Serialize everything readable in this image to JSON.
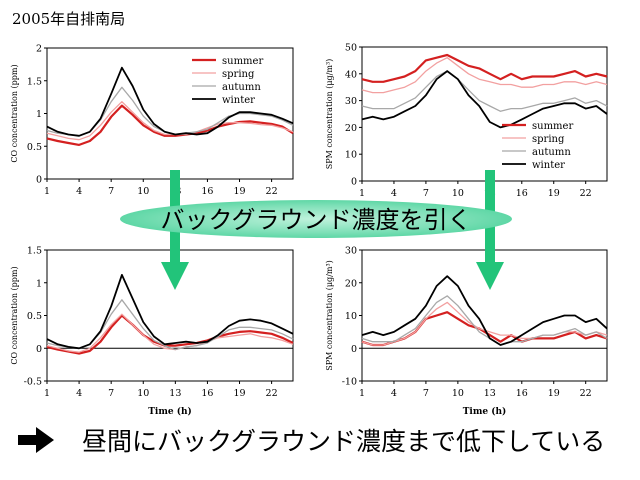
{
  "title": "2005年自排南局",
  "banner_text": "バックグラウンド濃度を引く",
  "bottom_message": "昼間にバックグラウンド濃度まで低下している",
  "colors": {
    "summer": "#d42020",
    "spring": "#f2a0a0",
    "autumn": "#a8a8a8",
    "winter": "#000000",
    "arrow": "#22c47a",
    "banner": "#7fe0b8"
  },
  "chart_data": [
    {
      "id": "co-raw",
      "type": "line",
      "ylabel": "CO concentration (ppm)",
      "xlabel": "",
      "ylim": [
        0,
        2
      ],
      "yticks": [
        0,
        0.5,
        1,
        1.5,
        2
      ],
      "ytick_labels": [
        "0",
        "0.5",
        "1",
        "1.5",
        "2"
      ],
      "xticks": [
        1,
        4,
        7,
        10,
        13,
        16,
        19,
        22
      ],
      "xtick_labels": [
        "1",
        "4",
        "7",
        "10",
        "13",
        "16",
        "19",
        "22"
      ],
      "xlim": [
        1,
        24
      ],
      "legend": "top-right",
      "x": [
        1,
        2,
        3,
        4,
        5,
        6,
        7,
        8,
        9,
        10,
        11,
        12,
        13,
        14,
        15,
        16,
        17,
        18,
        19,
        20,
        21,
        22,
        23,
        24
      ],
      "series": [
        {
          "name": "summer",
          "values": [
            0.62,
            0.58,
            0.55,
            0.52,
            0.58,
            0.72,
            0.95,
            1.12,
            0.98,
            0.82,
            0.72,
            0.66,
            0.66,
            0.68,
            0.7,
            0.74,
            0.8,
            0.84,
            0.87,
            0.88,
            0.86,
            0.84,
            0.8,
            0.7
          ]
        },
        {
          "name": "spring",
          "values": [
            0.7,
            0.66,
            0.62,
            0.6,
            0.66,
            0.82,
            1.02,
            1.18,
            1.02,
            0.86,
            0.74,
            0.68,
            0.68,
            0.68,
            0.72,
            0.78,
            0.84,
            0.86,
            0.86,
            0.85,
            0.83,
            0.82,
            0.78,
            0.72
          ]
        },
        {
          "name": "autumn",
          "values": [
            0.74,
            0.7,
            0.68,
            0.66,
            0.72,
            0.9,
            1.18,
            1.4,
            1.2,
            0.96,
            0.8,
            0.72,
            0.68,
            0.7,
            0.72,
            0.76,
            0.86,
            0.96,
            1.0,
            1.0,
            0.98,
            0.96,
            0.9,
            0.82
          ]
        },
        {
          "name": "winter",
          "values": [
            0.8,
            0.72,
            0.68,
            0.66,
            0.72,
            0.92,
            1.3,
            1.7,
            1.42,
            1.06,
            0.84,
            0.72,
            0.68,
            0.7,
            0.68,
            0.7,
            0.8,
            0.94,
            1.02,
            1.02,
            1.0,
            0.98,
            0.92,
            0.85
          ]
        }
      ]
    },
    {
      "id": "spm-raw",
      "type": "line",
      "ylabel": "SPM concentration (μg/m³)",
      "xlabel": "",
      "ylim": [
        0,
        50
      ],
      "yticks": [
        0,
        10,
        20,
        30,
        40,
        50
      ],
      "ytick_labels": [
        "0",
        "10",
        "20",
        "30",
        "40",
        "50"
      ],
      "xticks": [
        1,
        4,
        7,
        10,
        13,
        16,
        19,
        22
      ],
      "xtick_labels": [
        "1",
        "4",
        "7",
        "10",
        "13",
        "16",
        "19",
        "22"
      ],
      "xlim": [
        1,
        24
      ],
      "legend": "bottom-right",
      "x": [
        1,
        2,
        3,
        4,
        5,
        6,
        7,
        8,
        9,
        10,
        11,
        12,
        13,
        14,
        15,
        16,
        17,
        18,
        19,
        20,
        21,
        22,
        23,
        24
      ],
      "series": [
        {
          "name": "summer",
          "values": [
            38,
            37,
            37,
            38,
            39,
            41,
            45,
            46,
            47,
            45,
            43,
            42,
            40,
            38,
            40,
            38,
            39,
            39,
            39,
            40,
            41,
            39,
            40,
            39
          ]
        },
        {
          "name": "spring",
          "values": [
            34,
            33,
            33,
            34,
            35,
            37,
            41,
            44,
            46,
            43,
            40,
            38,
            37,
            36,
            36,
            35,
            35,
            36,
            36,
            37,
            37,
            36,
            37,
            36
          ]
        },
        {
          "name": "autumn",
          "values": [
            28,
            27,
            27,
            27,
            29,
            31,
            35,
            39,
            41,
            38,
            34,
            30,
            28,
            26,
            27,
            27,
            28,
            29,
            29,
            30,
            31,
            29,
            30,
            28
          ]
        },
        {
          "name": "winter",
          "values": [
            23,
            24,
            23,
            24,
            26,
            28,
            32,
            38,
            41,
            38,
            32,
            28,
            22,
            20,
            21,
            23,
            25,
            27,
            28,
            29,
            29,
            27,
            28,
            25
          ]
        }
      ]
    },
    {
      "id": "co-diff",
      "type": "line",
      "ylabel": "CO concentration (ppm)",
      "xlabel": "Time (h)",
      "ylim": [
        -0.5,
        1.5
      ],
      "yticks": [
        -0.5,
        0,
        0.5,
        1,
        1.5
      ],
      "ytick_labels": [
        "-0.5",
        "0",
        "0.5",
        "1",
        "1.5"
      ],
      "xticks": [
        1,
        4,
        7,
        10,
        13,
        16,
        19,
        22
      ],
      "xtick_labels": [
        "1",
        "4",
        "7",
        "10",
        "13",
        "16",
        "19",
        "22"
      ],
      "xlim": [
        1,
        24
      ],
      "legend": "none",
      "x": [
        1,
        2,
        3,
        4,
        5,
        6,
        7,
        8,
        9,
        10,
        11,
        12,
        13,
        14,
        15,
        16,
        17,
        18,
        19,
        20,
        21,
        22,
        23,
        24
      ],
      "series": [
        {
          "name": "summer",
          "values": [
            0.02,
            -0.02,
            -0.05,
            -0.08,
            -0.04,
            0.1,
            0.32,
            0.5,
            0.36,
            0.2,
            0.1,
            0.04,
            0.04,
            0.06,
            0.08,
            0.12,
            0.18,
            0.22,
            0.25,
            0.26,
            0.24,
            0.22,
            0.16,
            0.08
          ]
        },
        {
          "name": "spring",
          "values": [
            0.04,
            0.0,
            -0.04,
            -0.06,
            0.0,
            0.16,
            0.36,
            0.52,
            0.36,
            0.2,
            0.06,
            0.0,
            -0.02,
            0.02,
            0.04,
            0.1,
            0.16,
            0.18,
            0.2,
            0.22,
            0.18,
            0.16,
            0.12,
            0.06
          ]
        },
        {
          "name": "autumn",
          "values": [
            0.08,
            0.04,
            0.02,
            0.0,
            0.06,
            0.24,
            0.52,
            0.74,
            0.52,
            0.3,
            0.12,
            0.04,
            -0.02,
            0.02,
            0.04,
            0.08,
            0.18,
            0.28,
            0.32,
            0.32,
            0.3,
            0.28,
            0.22,
            0.14
          ]
        },
        {
          "name": "winter",
          "values": [
            0.14,
            0.06,
            0.02,
            0.0,
            0.06,
            0.26,
            0.64,
            1.12,
            0.76,
            0.4,
            0.18,
            0.06,
            0.08,
            0.1,
            0.08,
            0.1,
            0.2,
            0.34,
            0.42,
            0.44,
            0.42,
            0.38,
            0.3,
            0.22
          ]
        }
      ]
    },
    {
      "id": "spm-diff",
      "type": "line",
      "ylabel": "SPM concentration (μg/m³)",
      "xlabel": "Time (h)",
      "ylim": [
        -10,
        30
      ],
      "yticks": [
        -10,
        0,
        10,
        20,
        30
      ],
      "ytick_labels": [
        "-10",
        "0",
        "10",
        "20",
        "30"
      ],
      "xticks": [
        1,
        4,
        7,
        10,
        13,
        16,
        19,
        22
      ],
      "xtick_labels": [
        "1",
        "4",
        "7",
        "10",
        "13",
        "16",
        "19",
        "22"
      ],
      "xlim": [
        1,
        24
      ],
      "legend": "none",
      "x": [
        1,
        2,
        3,
        4,
        5,
        6,
        7,
        8,
        9,
        10,
        11,
        12,
        13,
        14,
        15,
        16,
        17,
        18,
        19,
        20,
        21,
        22,
        23,
        24
      ],
      "series": [
        {
          "name": "summer",
          "values": [
            2,
            1,
            1,
            2,
            3,
            5,
            9,
            10,
            11,
            9,
            7,
            6,
            4,
            2,
            4,
            2,
            3,
            3,
            3,
            4,
            5,
            3,
            4,
            3
          ]
        },
        {
          "name": "spring",
          "values": [
            2,
            1,
            1,
            2,
            3,
            5,
            9,
            12,
            14,
            11,
            8,
            6,
            5,
            4,
            4,
            3,
            3,
            4,
            4,
            5,
            5,
            4,
            5,
            4
          ]
        },
        {
          "name": "autumn",
          "values": [
            3,
            2,
            2,
            2,
            4,
            6,
            10,
            14,
            16,
            13,
            9,
            5,
            3,
            1,
            2,
            2,
            3,
            4,
            4,
            5,
            6,
            4,
            5,
            3
          ]
        },
        {
          "name": "winter",
          "values": [
            4,
            5,
            4,
            5,
            7,
            9,
            13,
            19,
            22,
            19,
            13,
            9,
            3,
            1,
            2,
            4,
            6,
            8,
            9,
            10,
            10,
            8,
            9,
            6
          ]
        }
      ]
    }
  ]
}
